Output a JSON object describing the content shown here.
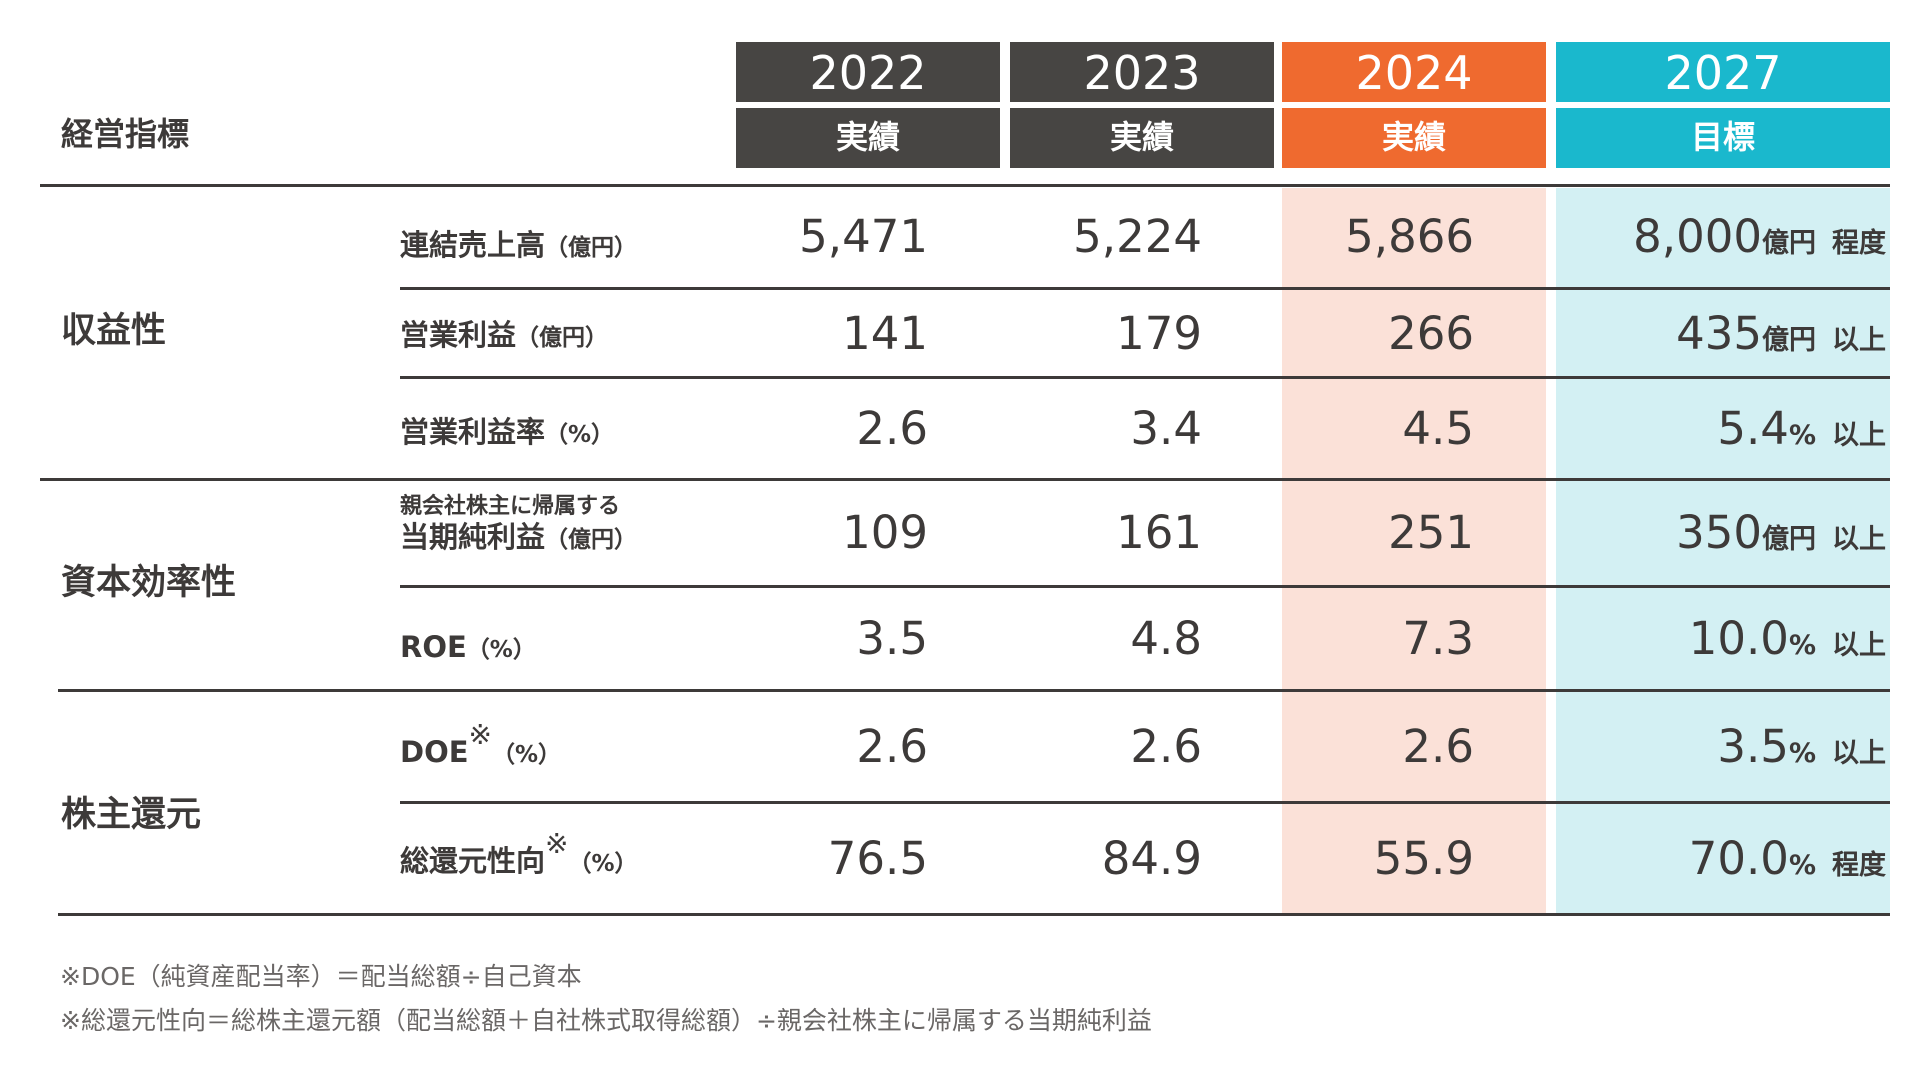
{
  "header": {
    "metric_label": "経営指標",
    "columns": [
      {
        "year": "2022",
        "label": "実績"
      },
      {
        "year": "2023",
        "label": "実績"
      },
      {
        "year": "2024",
        "label": "実績"
      },
      {
        "year": "2027",
        "label": "目標"
      }
    ]
  },
  "colors": {
    "dark_header": "#474543",
    "accent_orange": "#ef6a2f",
    "accent_teal": "#1ab8cd",
    "orange_tint": "#fbe1d8",
    "teal_tint": "#d3f0f3",
    "text": "#3d3a39"
  },
  "categories": [
    "収益性",
    "資本効率性",
    "株主還元"
  ],
  "rows": [
    {
      "name": "連結売上高",
      "unit": "（億円）",
      "v2022": "5,471",
      "v2023": "5,224",
      "v2024": "5,866",
      "target": "8,000",
      "target_unit": "億円",
      "target_qual": "程度"
    },
    {
      "name": "営業利益",
      "unit": "（億円）",
      "v2022": "141",
      "v2023": "179",
      "v2024": "266",
      "target": "435",
      "target_unit": "億円",
      "target_qual": "以上"
    },
    {
      "name": "営業利益率",
      "unit": "（%）",
      "v2022": "2.6",
      "v2023": "3.4",
      "v2024": "4.5",
      "target": "5.4",
      "target_unit": "%",
      "target_qual": "以上"
    },
    {
      "pre": "親会社株主に帰属する",
      "name": "当期純利益",
      "unit": "（億円）",
      "v2022": "109",
      "v2023": "161",
      "v2024": "251",
      "target": "350",
      "target_unit": "億円",
      "target_qual": "以上"
    },
    {
      "name": "ROE",
      "unit": "（%）",
      "v2022": "3.5",
      "v2023": "4.8",
      "v2024": "7.3",
      "target": "10.0",
      "target_unit": "%",
      "target_qual": "以上"
    },
    {
      "name": "DOE",
      "mark": "※",
      "unit": "（%）",
      "v2022": "2.6",
      "v2023": "2.6",
      "v2024": "2.6",
      "target": "3.5",
      "target_unit": "%",
      "target_qual": "以上"
    },
    {
      "name": "総還元性向",
      "mark": "※",
      "unit": "（%）",
      "v2022": "76.5",
      "v2023": "84.9",
      "v2024": "55.9",
      "target": "70.0",
      "target_unit": "%",
      "target_qual": "程度"
    }
  ],
  "notes": [
    "※DOE（純資産配当率）＝配当総額÷自己資本",
    "※総還元性向＝総株主還元額（配当総額＋自社株式取得総額）÷親会社株主に帰属する当期純利益"
  ]
}
